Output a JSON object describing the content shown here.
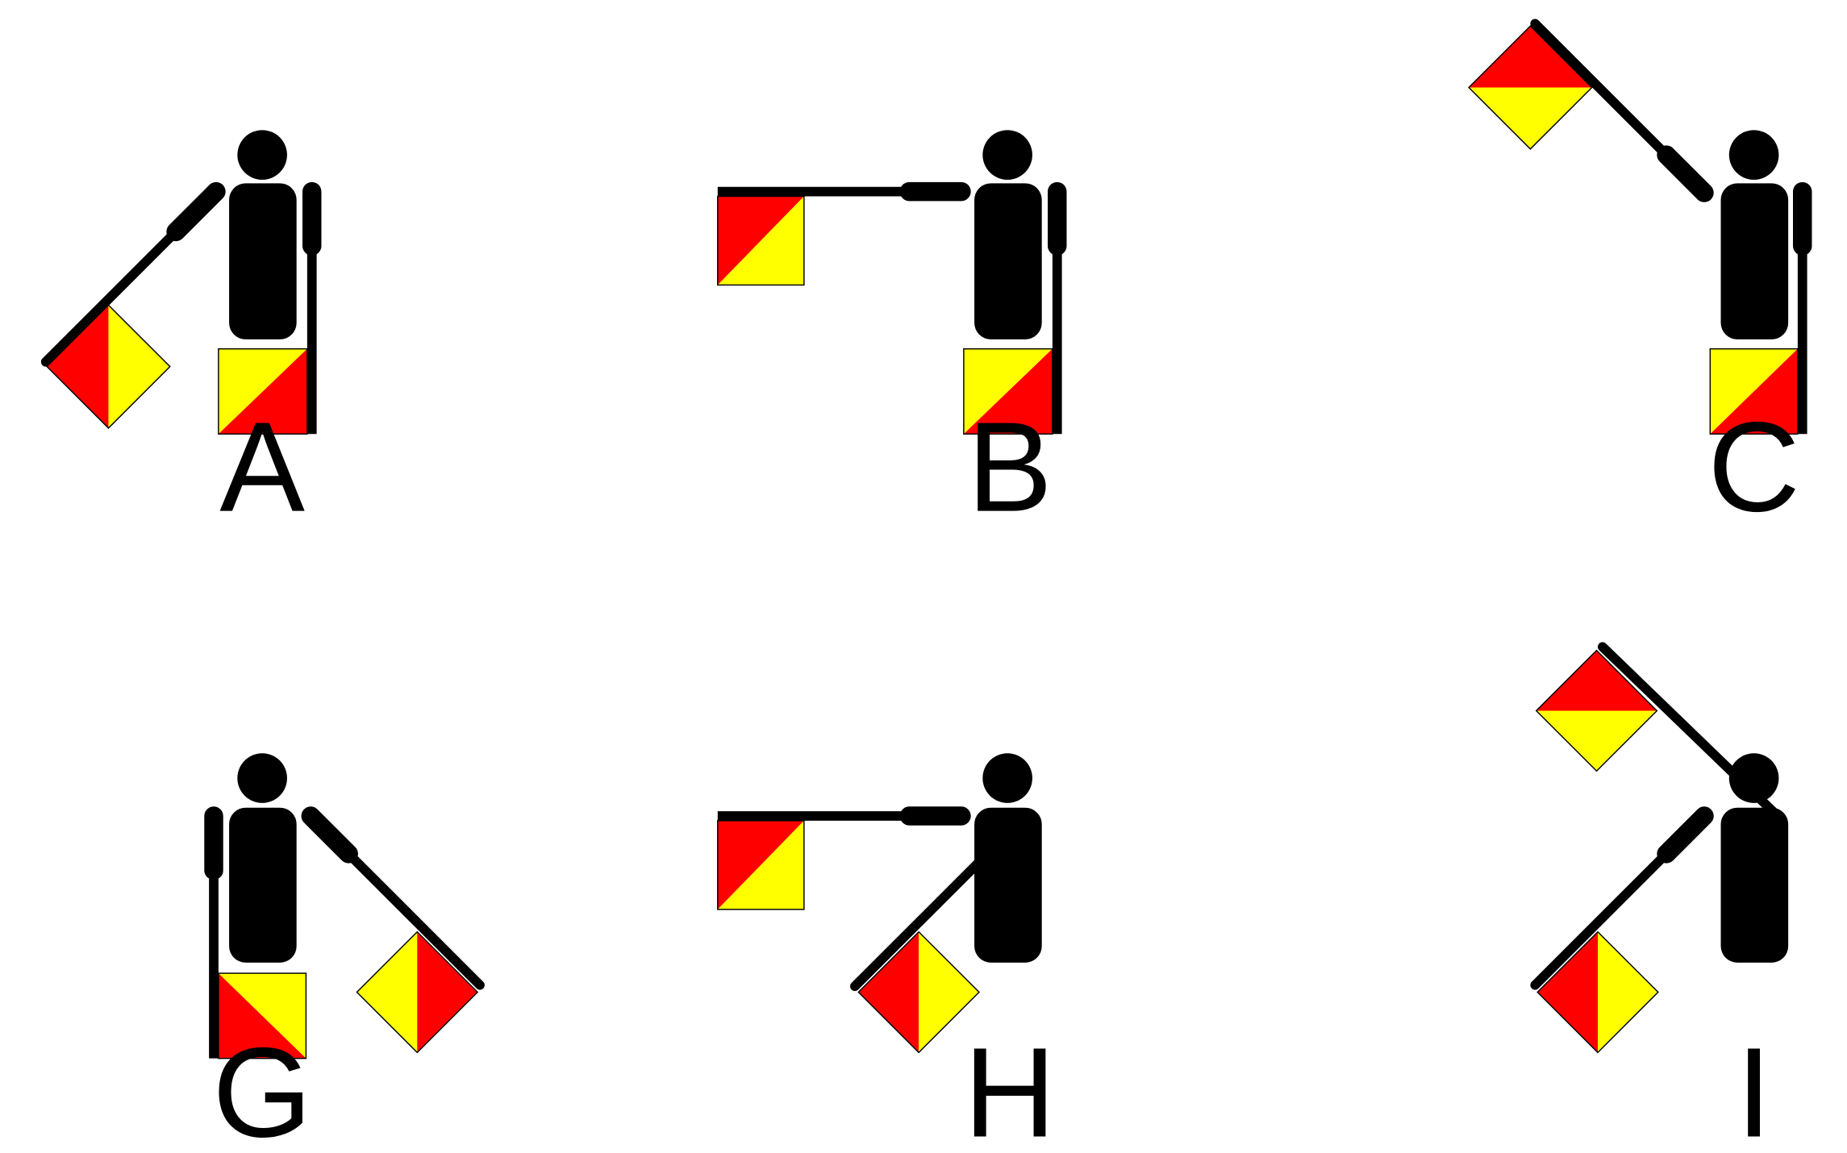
{
  "colors": {
    "background": "#ffffff",
    "figure": "#000000",
    "flag_red": "#ff0000",
    "flag_yellow": "#ffff00"
  },
  "icons": {
    "figure": "semaphore-signaller-icon",
    "flag": "semaphore-flag-icon"
  },
  "signals": [
    {
      "letter": "A"
    },
    {
      "letter": "B"
    },
    {
      "letter": "C"
    },
    {
      "letter": "G"
    },
    {
      "letter": "H"
    },
    {
      "letter": "I"
    }
  ]
}
